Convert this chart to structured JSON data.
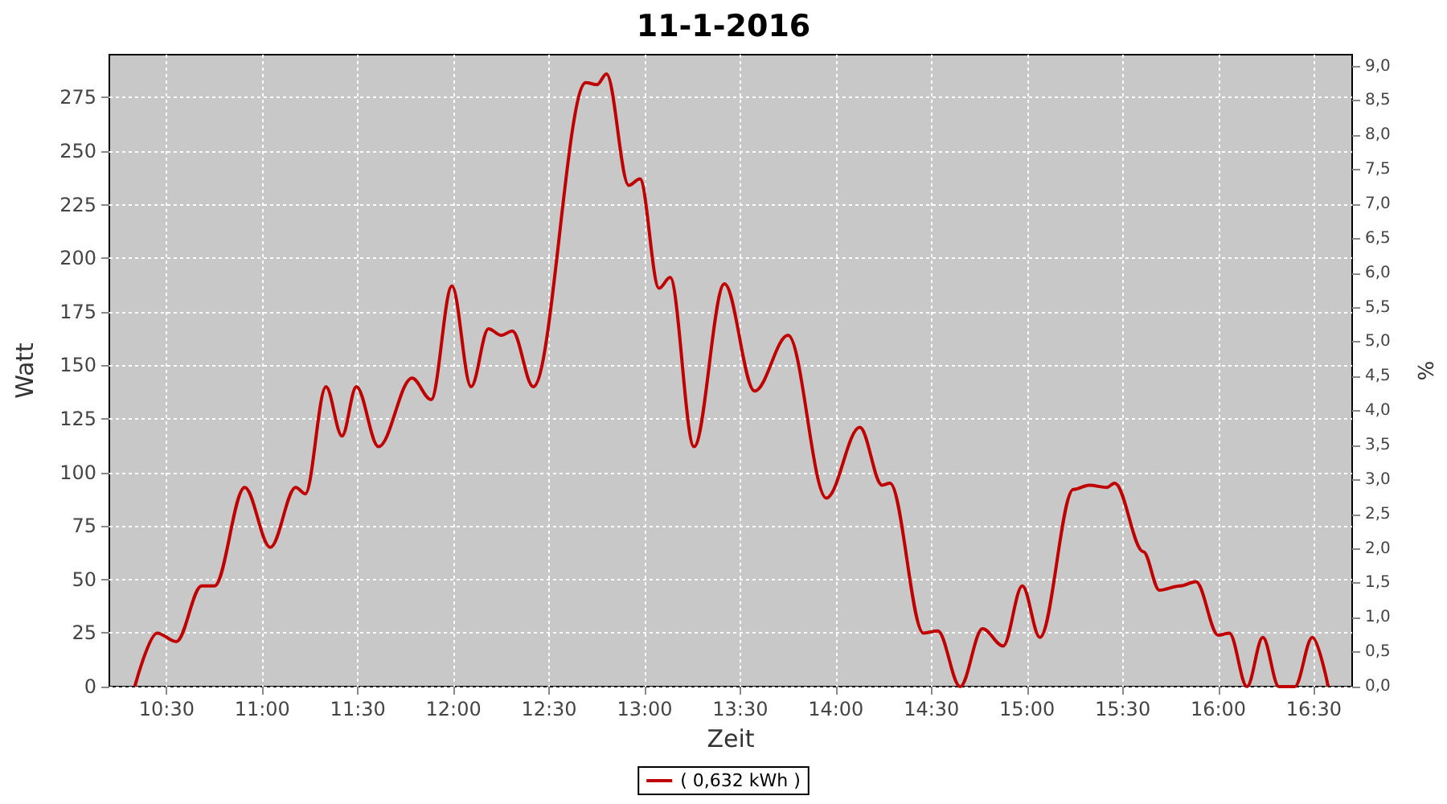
{
  "chart_data": {
    "type": "line",
    "title": "11-1-2016",
    "xlabel": "Zeit",
    "ylabel": "Watt",
    "y2label": "%",
    "xlim": [
      10.2,
      16.7
    ],
    "xticks": [
      {
        "value": 10.5,
        "label": "10:30"
      },
      {
        "value": 11,
        "label": "11:00"
      },
      {
        "value": 11.5,
        "label": "11:30"
      },
      {
        "value": 12,
        "label": "12:00"
      },
      {
        "value": 12.5,
        "label": "12:30"
      },
      {
        "value": 13,
        "label": "13:00"
      },
      {
        "value": 13.5,
        "label": "13:30"
      },
      {
        "value": 14,
        "label": "14:00"
      },
      {
        "value": 14.5,
        "label": "14:30"
      },
      {
        "value": 15,
        "label": "15:00"
      },
      {
        "value": 15.5,
        "label": "15:30"
      },
      {
        "value": 16,
        "label": "16:00"
      },
      {
        "value": 16.5,
        "label": "16:30"
      }
    ],
    "ylim": [
      0,
      295
    ],
    "yticks": [
      0,
      25,
      50,
      75,
      100,
      125,
      150,
      175,
      200,
      225,
      250,
      275
    ],
    "y2lim": [
      0,
      9.17
    ],
    "y2ticks": [
      {
        "value": 0,
        "label": "0,0"
      },
      {
        "value": 0.5,
        "label": "0,5"
      },
      {
        "value": 1,
        "label": "1,0"
      },
      {
        "value": 1.5,
        "label": "1,5"
      },
      {
        "value": 2,
        "label": "2,0"
      },
      {
        "value": 2.5,
        "label": "2,5"
      },
      {
        "value": 3,
        "label": "3,0"
      },
      {
        "value": 3.5,
        "label": "3,5"
      },
      {
        "value": 4,
        "label": "4,0"
      },
      {
        "value": 4.5,
        "label": "4,5"
      },
      {
        "value": 5,
        "label": "5,0"
      },
      {
        "value": 5.5,
        "label": "5,5"
      },
      {
        "value": 6,
        "label": "6,0"
      },
      {
        "value": 6.5,
        "label": "6,5"
      },
      {
        "value": 7,
        "label": "7,0"
      },
      {
        "value": 7.5,
        "label": "7,5"
      },
      {
        "value": 8,
        "label": "8,0"
      },
      {
        "value": 8.5,
        "label": "8,5"
      },
      {
        "value": 9,
        "label": "9,0"
      }
    ],
    "grid": true,
    "legend": "bottom",
    "marker": "none",
    "line_style": "solid",
    "series": [
      {
        "name": "( 0,632 kWh )",
        "color": "#c00000",
        "x": [
          10.333,
          10.45,
          10.55,
          10.683,
          10.75,
          10.908,
          11.042,
          11.175,
          11.225,
          11.333,
          11.417,
          11.492,
          11.608,
          11.783,
          11.883,
          11.992,
          12.092,
          12.183,
          12.25,
          12.308,
          12.417,
          12.692,
          12.75,
          12.8,
          12.917,
          12.975,
          13.075,
          13.133,
          13.258,
          13.417,
          13.575,
          13.75,
          13.95,
          14.125,
          14.242,
          14.283,
          14.458,
          14.533,
          14.65,
          14.767,
          14.875,
          14.975,
          15.067,
          15.242,
          15.325,
          15.417,
          15.458,
          15.608,
          15.692,
          15.8,
          15.883,
          16.0,
          16.058,
          16.15,
          16.233,
          16.317,
          16.4,
          16.492,
          16.575
        ],
        "values": [
          0,
          25,
          21,
          47,
          47,
          93,
          65,
          93,
          90,
          140,
          117,
          140,
          112,
          144,
          134,
          187,
          140,
          167,
          164,
          166,
          140,
          282,
          281,
          286,
          234,
          237,
          186,
          191,
          112,
          188,
          138,
          164,
          88,
          121,
          94,
          95,
          25,
          26,
          0,
          27,
          19,
          47,
          23,
          92,
          94,
          93,
          95,
          63,
          45,
          47,
          49,
          24,
          25,
          0,
          23,
          0,
          0,
          23,
          0
        ]
      }
    ]
  }
}
